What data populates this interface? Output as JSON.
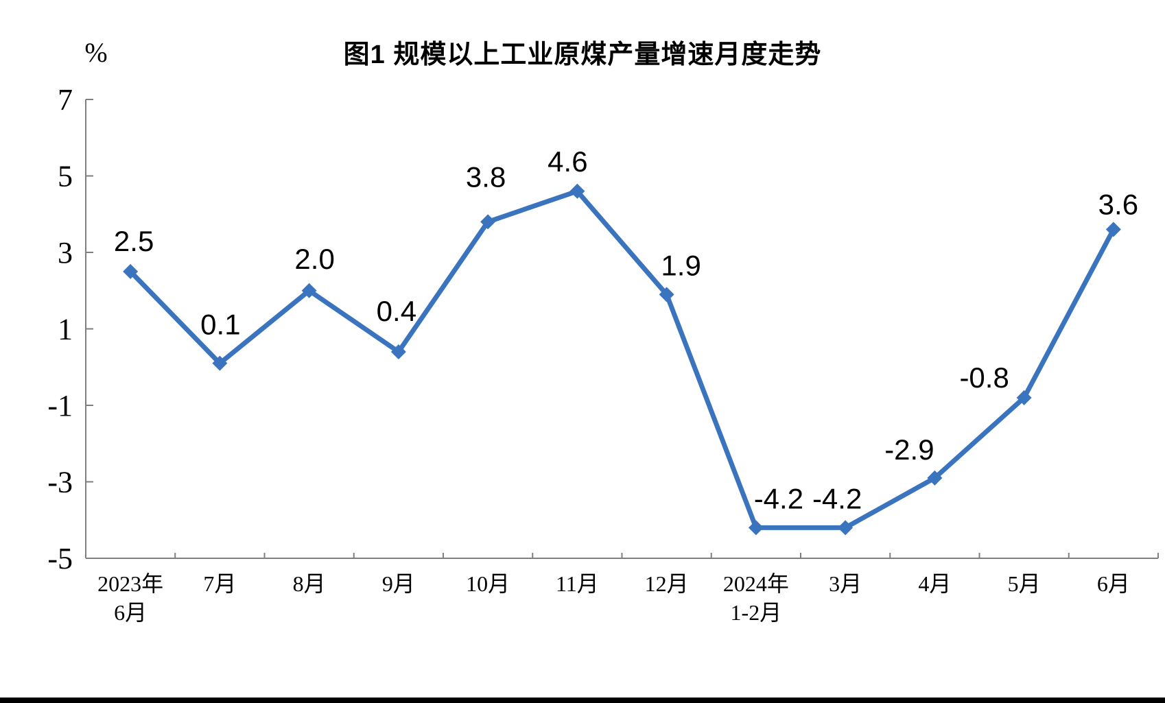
{
  "chart_data": {
    "type": "line",
    "title": "图1  规模以上工业原煤产量增速月度走势",
    "unit_label": "%",
    "categories": [
      [
        "2023年",
        "6月"
      ],
      [
        "7月"
      ],
      [
        "8月"
      ],
      [
        "9月"
      ],
      [
        "10月"
      ],
      [
        "11月"
      ],
      [
        "12月"
      ],
      [
        "2024年",
        "1-2月"
      ],
      [
        "3月"
      ],
      [
        "4月"
      ],
      [
        "5月"
      ],
      [
        "6月"
      ]
    ],
    "values": [
      2.5,
      0.1,
      2.0,
      0.4,
      3.8,
      4.6,
      1.9,
      -4.2,
      -4.2,
      -2.9,
      -0.8,
      3.6
    ],
    "data_labels": [
      "2.5",
      "0.1",
      "2.0",
      "0.4",
      "3.8",
      "4.6",
      "1.9",
      "-4.2",
      "-4.2",
      "-2.9",
      "-0.8",
      "3.6"
    ],
    "y_ticks": [
      7,
      5,
      3,
      1,
      -1,
      -3,
      -5
    ],
    "ylim": [
      -5,
      7
    ],
    "grid": false,
    "legend": "none",
    "line_color": "#3A73BE",
    "axis_color": "#7F7F7F",
    "text_color": "#000000",
    "marker": "diamond"
  }
}
